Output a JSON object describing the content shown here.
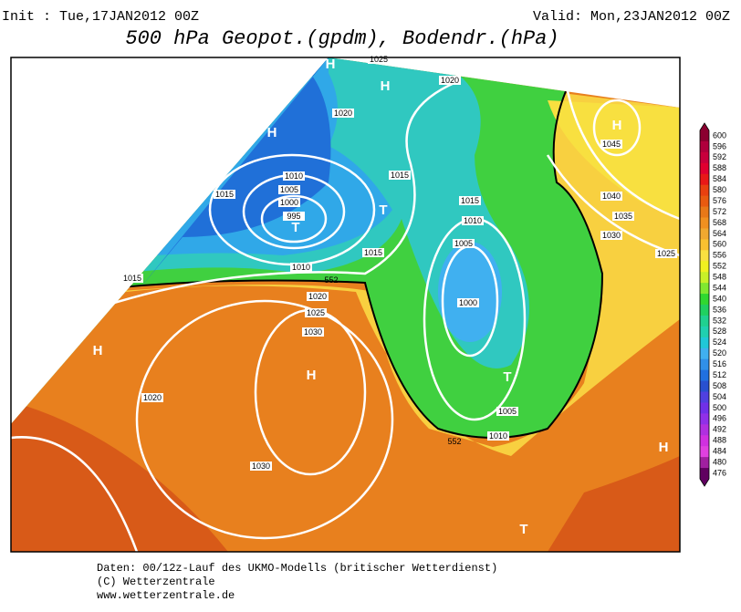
{
  "header": {
    "init": "Init : Tue,17JAN2012 00Z",
    "valid": "Valid: Mon,23JAN2012 00Z",
    "title": "500 hPa Geopot.(gpdm), Bodendr.(hPa)"
  },
  "map": {
    "isobar_labels": [
      "1025",
      "1020",
      "1020",
      "1010",
      "1005",
      "1000",
      "995",
      "1015",
      "1015",
      "1015",
      "1010",
      "1005",
      "1015",
      "1010",
      "1015",
      "1020",
      "1025",
      "1030",
      "1000",
      "1005",
      "1010",
      "1020",
      "1030",
      "1045",
      "1040",
      "1035",
      "1030",
      "1025"
    ],
    "geopotential_labels": [
      "552",
      "552"
    ],
    "pressure_centers": [
      "H",
      "H",
      "H",
      "T",
      "T",
      "H",
      "H",
      "H",
      "T",
      "H",
      "T"
    ]
  },
  "colorbar": {
    "labels": [
      600,
      596,
      592,
      588,
      584,
      580,
      576,
      572,
      568,
      564,
      560,
      556,
      552,
      548,
      544,
      540,
      536,
      532,
      528,
      524,
      520,
      516,
      512,
      508,
      504,
      500,
      496,
      492,
      488,
      484,
      480,
      476
    ],
    "colors": [
      "#8b0030",
      "#b0003c",
      "#c8003c",
      "#e00030",
      "#e81818",
      "#e84010",
      "#e85a10",
      "#e87818",
      "#f09020",
      "#f0a830",
      "#f8c030",
      "#f8e040",
      "#f0f020",
      "#c8f028",
      "#80e830",
      "#30d830",
      "#20d060",
      "#20d090",
      "#20d0b0",
      "#20c8d8",
      "#40b0f0",
      "#3090e8",
      "#2070e0",
      "#2850d0",
      "#5040e0",
      "#7030e8",
      "#9030e8",
      "#b030e0",
      "#d030e0",
      "#e040e0",
      "#a020a0",
      "#600060"
    ]
  },
  "footer": [
    "Daten: 00/12z-Lauf des UKMO-Modells (britischer Wetterdienst)",
    "(C) Wetterzentrale",
    "www.wetterzentrale.de"
  ]
}
